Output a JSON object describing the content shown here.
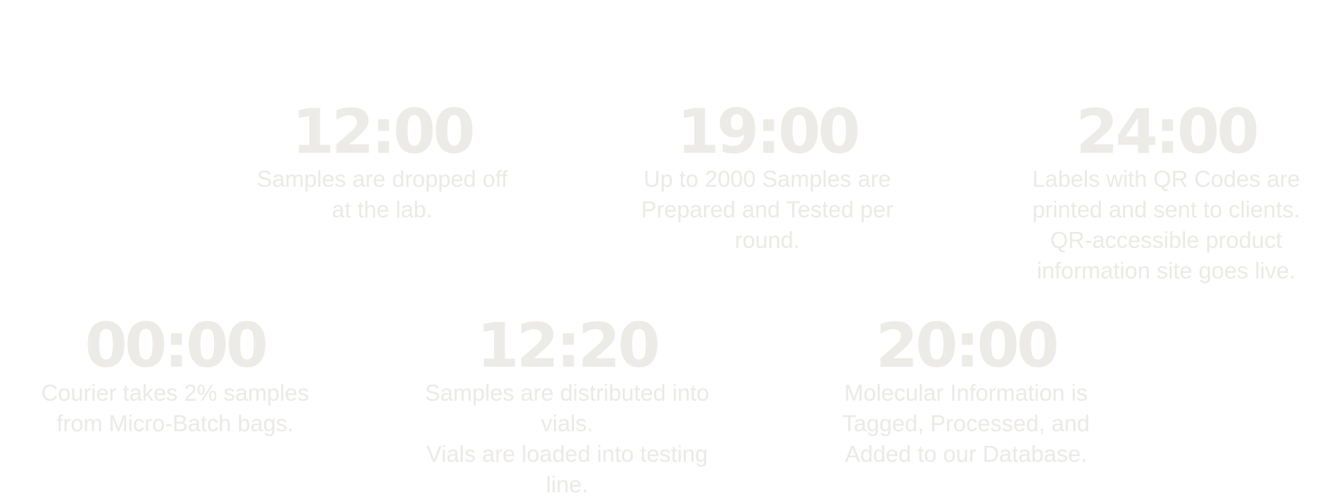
{
  "steps": [
    {
      "time": "12:00",
      "lines": [
        "Samples are dropped off",
        "at the lab."
      ]
    },
    {
      "time": "19:00",
      "lines": [
        "Up to 2000 Samples are",
        "Prepared and Tested per round."
      ]
    },
    {
      "time": "24:00",
      "lines": [
        "Labels with QR Codes are",
        "printed and sent to clients.",
        "QR-accessible product",
        "information site goes live."
      ]
    },
    {
      "time": "00:00",
      "lines": [
        "Courier takes 2% samples",
        "from Micro-Batch bags."
      ]
    },
    {
      "time": "12:20",
      "lines": [
        "Samples are distributed into vials.",
        "Vials are loaded into testing line."
      ]
    },
    {
      "time": "20:00",
      "lines": [
        "Molecular Information is",
        "Tagged, Processed, and",
        "Added to our Database."
      ]
    }
  ]
}
